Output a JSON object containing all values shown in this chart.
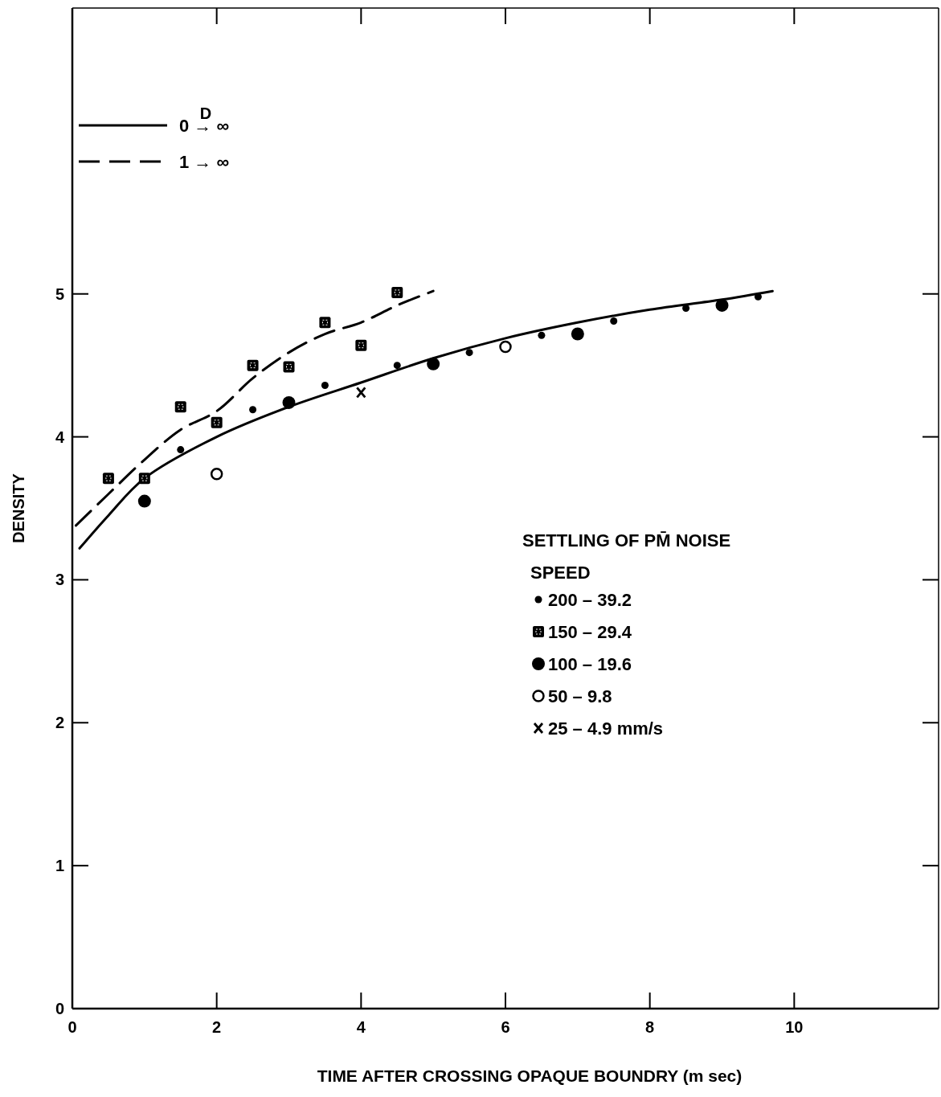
{
  "chart_data": {
    "type": "scatter",
    "xlabel": "TIME AFTER CROSSING OPAQUE BOUNDRY   (m sec)",
    "ylabel": "DENSITY",
    "xlim": [
      0,
      12
    ],
    "ylim": [
      0,
      7
    ],
    "xticks": [
      0,
      2,
      4,
      6,
      8,
      10
    ],
    "yticks": [
      0,
      1,
      2,
      3,
      4,
      5
    ],
    "grid": false,
    "legend": "top left",
    "legend_title": "SPEED",
    "annotations": [
      "SETTLING OF PM̄ NOISE",
      "D"
    ],
    "series": [
      {
        "name": "0 → ∞",
        "type": "line",
        "line_style": "solid",
        "marker": "none",
        "color": "#000000",
        "x": [
          0.1,
          0.5,
          1,
          2,
          3,
          4,
          5,
          6,
          7,
          8,
          9,
          9.7
        ],
        "values": [
          3.22,
          3.45,
          3.71,
          4.0,
          4.21,
          4.38,
          4.55,
          4.69,
          4.8,
          4.89,
          4.96,
          5.02
        ]
      },
      {
        "name": "1 → ∞",
        "type": "line",
        "line_style": "dashed",
        "marker": "none",
        "color": "#000000",
        "x": [
          0.05,
          0.5,
          1,
          1.5,
          2,
          2.5,
          3,
          3.5,
          4,
          4.5,
          5
        ],
        "values": [
          3.38,
          3.6,
          3.84,
          4.05,
          4.18,
          4.41,
          4.59,
          4.72,
          4.8,
          4.92,
          5.02
        ]
      },
      {
        "name": "200 – 39.2",
        "marker": "point",
        "color": "#000000",
        "x": [
          1.5,
          2.5,
          3.5,
          4.5,
          5.5,
          6.5,
          7.5,
          8.5,
          9.5
        ],
        "values": [
          3.91,
          4.19,
          4.36,
          4.5,
          4.59,
          4.71,
          4.81,
          4.9,
          4.98
        ]
      },
      {
        "name": "150 – 29.4",
        "marker": "square",
        "color": "#000000",
        "x": [
          0.5,
          1,
          1.5,
          2,
          2.5,
          3,
          3.5,
          4,
          4.5
        ],
        "values": [
          3.71,
          3.71,
          4.21,
          4.1,
          4.5,
          4.49,
          4.8,
          4.64,
          5.01
        ]
      },
      {
        "name": "100 – 19.6",
        "marker": "circle",
        "color": "#000000",
        "x": [
          1,
          3,
          5,
          7,
          9
        ],
        "values": [
          3.55,
          4.24,
          4.51,
          4.72,
          4.92
        ]
      },
      {
        "name": "50 – 9.8",
        "marker": "circle-open",
        "color": "#000000",
        "x": [
          2,
          6
        ],
        "values": [
          3.74,
          4.63
        ]
      },
      {
        "name": "25 – 4.9 mm/s",
        "marker": "cross",
        "color": "#000000",
        "x": [
          4
        ],
        "values": [
          4.31
        ]
      }
    ]
  }
}
